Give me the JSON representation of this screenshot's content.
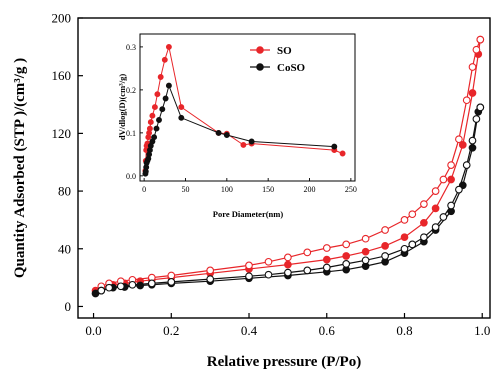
{
  "chart_data": [
    {
      "type": "line",
      "xlabel": "Relative pressure (P/Po)",
      "ylabel": "Quantity Adsorbed (STP )/(cm³/g )",
      "xlim": [
        -0.04,
        1.02
      ],
      "ylim": [
        -8,
        200
      ],
      "xticks": [
        "0.0",
        "0.2",
        "0.4",
        "0.6",
        "0.8",
        "1.0"
      ],
      "yticks": [
        "0",
        "40",
        "80",
        "120",
        "160",
        "200"
      ],
      "grid": false,
      "series": [
        {
          "name": "SO",
          "color": "#e8262a",
          "marker": "filled-circle",
          "role": "adsorption",
          "x": [
            0.005,
            0.02,
            0.05,
            0.08,
            0.12,
            0.15,
            0.2,
            0.3,
            0.4,
            0.5,
            0.6,
            0.65,
            0.7,
            0.75,
            0.8,
            0.85,
            0.88,
            0.92,
            0.95,
            0.975,
            0.99,
            0.995
          ],
          "y": [
            11,
            13,
            15,
            16,
            17.5,
            18.5,
            20,
            23,
            26,
            29,
            32.5,
            35,
            38,
            42,
            48,
            58,
            68,
            88,
            112,
            148,
            175,
            185
          ]
        },
        {
          "name": "SO",
          "color": "#e8262a",
          "marker": "open-circle",
          "role": "desorption",
          "x": [
            0.995,
            0.985,
            0.975,
            0.96,
            0.94,
            0.92,
            0.9,
            0.88,
            0.85,
            0.82,
            0.8,
            0.75,
            0.7,
            0.65,
            0.6,
            0.55,
            0.5,
            0.45,
            0.4,
            0.3,
            0.2,
            0.15,
            0.1,
            0.07,
            0.04,
            0.02
          ],
          "y": [
            185,
            178,
            166,
            143,
            116,
            98,
            88,
            80,
            71,
            64,
            60,
            53,
            47,
            43,
            40.5,
            37.5,
            34,
            31,
            28.5,
            25,
            21.5,
            20,
            18.5,
            17.5,
            16,
            14
          ]
        },
        {
          "name": "CoSO",
          "color": "#111111",
          "marker": "filled-circle",
          "role": "adsorption",
          "x": [
            0.005,
            0.02,
            0.05,
            0.08,
            0.12,
            0.15,
            0.2,
            0.3,
            0.4,
            0.5,
            0.6,
            0.65,
            0.7,
            0.75,
            0.8,
            0.85,
            0.88,
            0.92,
            0.95,
            0.975,
            0.99,
            0.995
          ],
          "y": [
            9,
            11,
            13,
            13.5,
            14.5,
            15,
            16,
            17.5,
            19.5,
            21.5,
            24,
            25.5,
            28,
            31,
            37,
            45,
            53,
            66,
            84,
            110,
            135,
            138
          ]
        },
        {
          "name": "CoSO",
          "color": "#111111",
          "marker": "open-circle",
          "role": "desorption",
          "x": [
            0.995,
            0.985,
            0.975,
            0.96,
            0.94,
            0.92,
            0.9,
            0.88,
            0.85,
            0.82,
            0.8,
            0.75,
            0.7,
            0.65,
            0.6,
            0.55,
            0.5,
            0.45,
            0.4,
            0.3,
            0.2,
            0.15,
            0.1,
            0.07,
            0.04,
            0.02
          ],
          "y": [
            138,
            130,
            115,
            98,
            81,
            70,
            62,
            55,
            48,
            43,
            40,
            35,
            32,
            29.5,
            27,
            25,
            23.5,
            22,
            21,
            19,
            17,
            16,
            15,
            14,
            13,
            11
          ]
        }
      ]
    },
    {
      "type": "line",
      "inset": true,
      "xlabel": "Pore  Diameter(nm)",
      "ylabel": "dV/dlog(D)(cm³/g)",
      "xlim": [
        -5,
        255
      ],
      "ylim": [
        -0.012,
        0.33
      ],
      "xticks": [
        "0",
        "50",
        "100",
        "150",
        "200",
        "250"
      ],
      "yticks": [
        "0.0",
        "0.1",
        "0.2",
        "0.3"
      ],
      "grid": false,
      "legend_position": "top-right",
      "series": [
        {
          "name": "SO",
          "color": "#e8262a",
          "marker": "filled-circle",
          "x": [
            1.5,
            2,
            2.5,
            3,
            4,
            5,
            6,
            7,
            8,
            10,
            13,
            16,
            20,
            25,
            30,
            45,
            90,
            100,
            120,
            130,
            230,
            240
          ],
          "y": [
            0.012,
            0.035,
            0.06,
            0.07,
            0.075,
            0.09,
            0.1,
            0.11,
            0.125,
            0.14,
            0.16,
            0.19,
            0.23,
            0.27,
            0.3,
            0.16,
            0.1,
            0.098,
            0.072,
            0.075,
            0.06,
            0.052
          ]
        },
        {
          "name": "CoSO",
          "color": "#111111",
          "marker": "filled-circle",
          "x": [
            1.5,
            2,
            2.5,
            3,
            4,
            5,
            6,
            7,
            8,
            10,
            12,
            15,
            18,
            22,
            26,
            30,
            45,
            90,
            100,
            130,
            230
          ],
          "y": [
            0.005,
            0.01,
            0.02,
            0.03,
            0.035,
            0.04,
            0.05,
            0.06,
            0.07,
            0.08,
            0.09,
            0.11,
            0.13,
            0.155,
            0.18,
            0.21,
            0.135,
            0.1,
            0.095,
            0.08,
            0.068
          ]
        }
      ]
    }
  ]
}
